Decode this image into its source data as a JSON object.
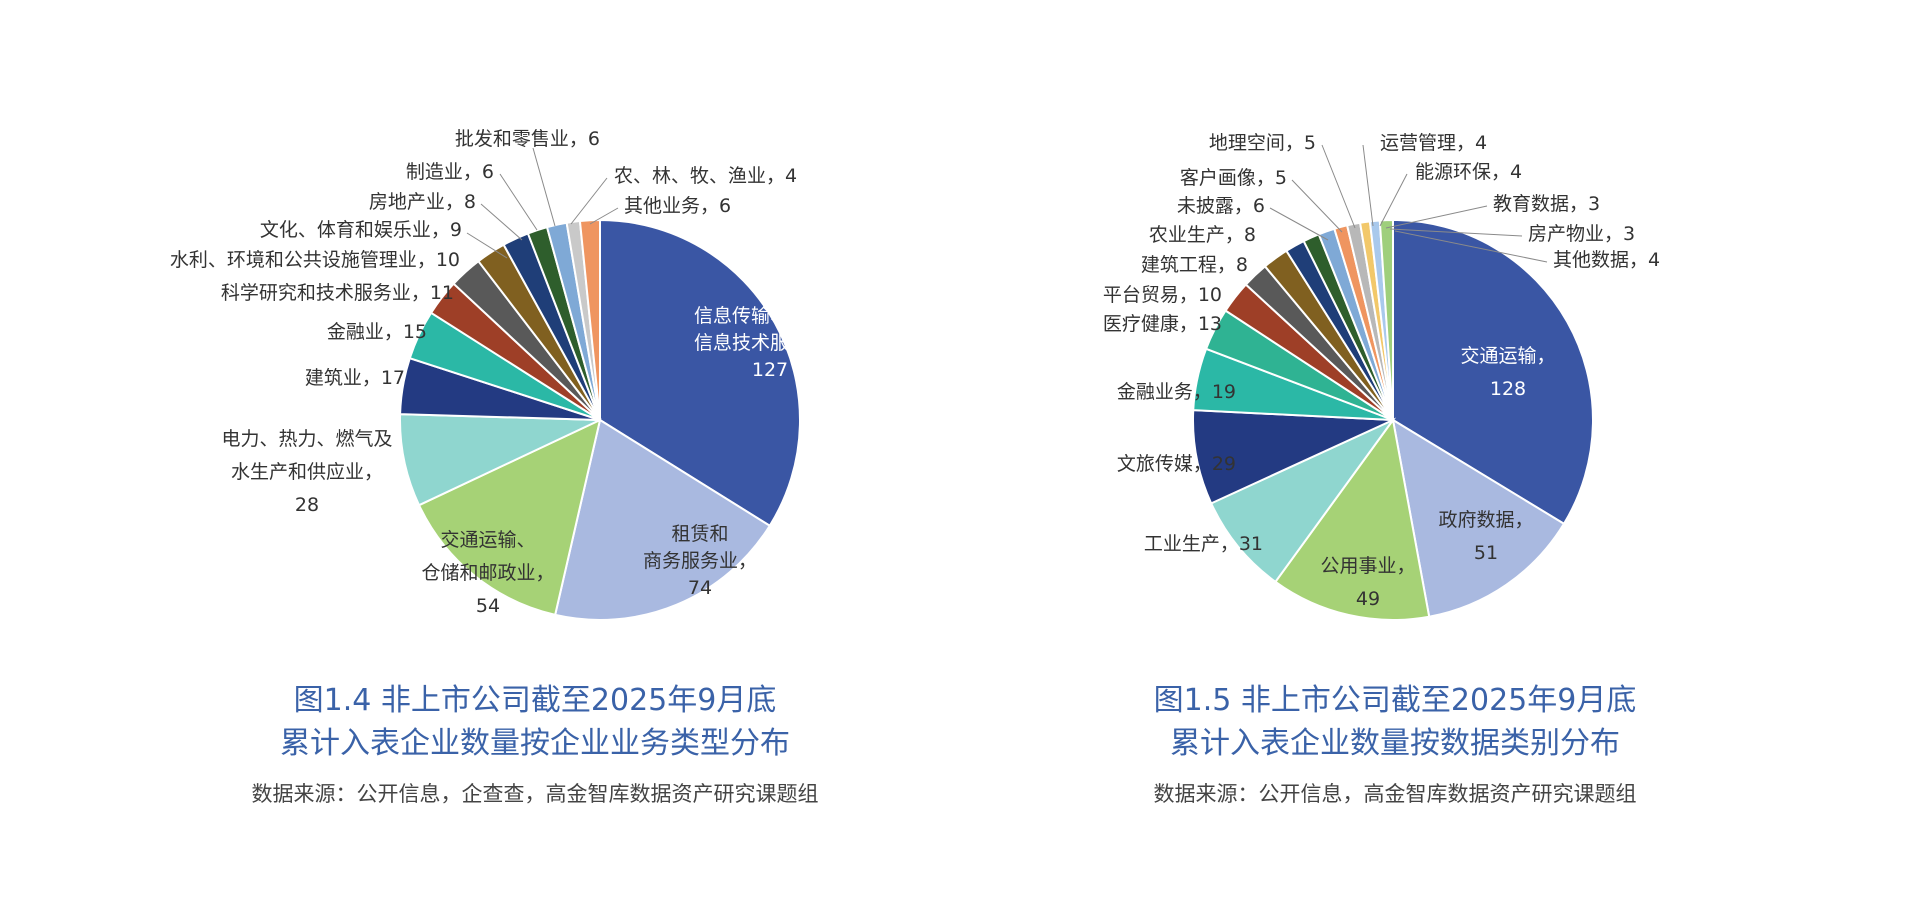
{
  "chart_data": [
    {
      "type": "pie",
      "caption_line1": "图1.4 非上市公司截至2025年9月底",
      "caption_line2": "累计入表企业数量按企业业务类型分布",
      "source": "数据来源：公开信息，企查查，高金智库数据资产研究课题组",
      "slices": [
        {
          "lines": [
            "信息传输、软件和",
            "信息技术服务业，",
            "127"
          ],
          "value": 127,
          "color": "#3a56a4"
        },
        {
          "lines": [
            "租赁和",
            "商务服务业，",
            "74"
          ],
          "value": 74,
          "color": "#a9b9e0"
        },
        {
          "lines": [
            "交通运输、",
            "仓储和邮政业，",
            "54"
          ],
          "value": 54,
          "color": "#a6d276"
        },
        {
          "lines": [
            "电力、热力、燃气及",
            "水生产和供应业，",
            "28"
          ],
          "value": 28,
          "color": "#8fd6cf"
        },
        {
          "lines": [
            "建筑业，17"
          ],
          "value": 17,
          "color": "#233a82"
        },
        {
          "lines": [
            "金融业，15"
          ],
          "value": 15,
          "color": "#2bb8a6"
        },
        {
          "lines": [
            "科学研究和技术服务业，11"
          ],
          "value": 11,
          "color": "#9e3f27"
        },
        {
          "lines": [
            "水利、环境和公共设施管理业，10"
          ],
          "value": 10,
          "color": "#595959"
        },
        {
          "lines": [
            "文化、体育和娱乐业，9"
          ],
          "value": 9,
          "color": "#806020"
        },
        {
          "lines": [
            "房地产业，8"
          ],
          "value": 8,
          "color": "#1f3e78"
        },
        {
          "lines": [
            "制造业，6"
          ],
          "value": 6,
          "color": "#2e5e2c"
        },
        {
          "lines": [
            "批发和零售业，6"
          ],
          "value": 6,
          "color": "#7fa9d6"
        },
        {
          "lines": [
            "农、林、牧、渔业，4"
          ],
          "value": 4,
          "color": "#c9c9c9"
        },
        {
          "lines": [
            "其他业务，6"
          ],
          "value": 6,
          "color": "#ef9560"
        }
      ]
    },
    {
      "type": "pie",
      "caption_line1": "图1.5 非上市公司截至2025年9月底",
      "caption_line2": "累计入表企业数量按数据类别分布",
      "source": "数据来源：公开信息，高金智库数据资产研究课题组",
      "slices": [
        {
          "lines": [
            "交通运输，",
            "128"
          ],
          "value": 128,
          "color": "#3a56a4"
        },
        {
          "lines": [
            "政府数据，",
            "51"
          ],
          "value": 51,
          "color": "#a9b9e0"
        },
        {
          "lines": [
            "公用事业，",
            "49"
          ],
          "value": 49,
          "color": "#a6d276"
        },
        {
          "lines": [
            "工业生产，31"
          ],
          "value": 31,
          "color": "#8fd6cf"
        },
        {
          "lines": [
            "文旅传媒，29"
          ],
          "value": 29,
          "color": "#233a82"
        },
        {
          "lines": [
            "金融业务，19"
          ],
          "value": 19,
          "color": "#2bb8a6"
        },
        {
          "lines": [
            "医疗健康，13"
          ],
          "value": 13,
          "color": "#2fb393"
        },
        {
          "lines": [
            "平台贸易，10"
          ],
          "value": 10,
          "color": "#9e3f27"
        },
        {
          "lines": [
            "建筑工程，8"
          ],
          "value": 8,
          "color": "#595959"
        },
        {
          "lines": [
            "农业生产，8"
          ],
          "value": 8,
          "color": "#806020"
        },
        {
          "lines": [
            "未披露，6"
          ],
          "value": 6,
          "color": "#1f3e78"
        },
        {
          "lines": [
            "客户画像，5"
          ],
          "value": 5,
          "color": "#2e5e2c"
        },
        {
          "lines": [
            "地理空间，5"
          ],
          "value": 5,
          "color": "#7fa9d6"
        },
        {
          "lines": [
            "运营管理，4"
          ],
          "value": 4,
          "color": "#ef9560"
        },
        {
          "lines": [
            "能源环保，4"
          ],
          "value": 4,
          "color": "#b8b8b8"
        },
        {
          "lines": [
            "教育数据，3"
          ],
          "value": 3,
          "color": "#f2c86a"
        },
        {
          "lines": [
            "房产物业，3"
          ],
          "value": 3,
          "color": "#a9c9ec"
        },
        {
          "lines": [
            "其他数据，4"
          ],
          "value": 4,
          "color": "#9fcf7c"
        }
      ]
    }
  ]
}
